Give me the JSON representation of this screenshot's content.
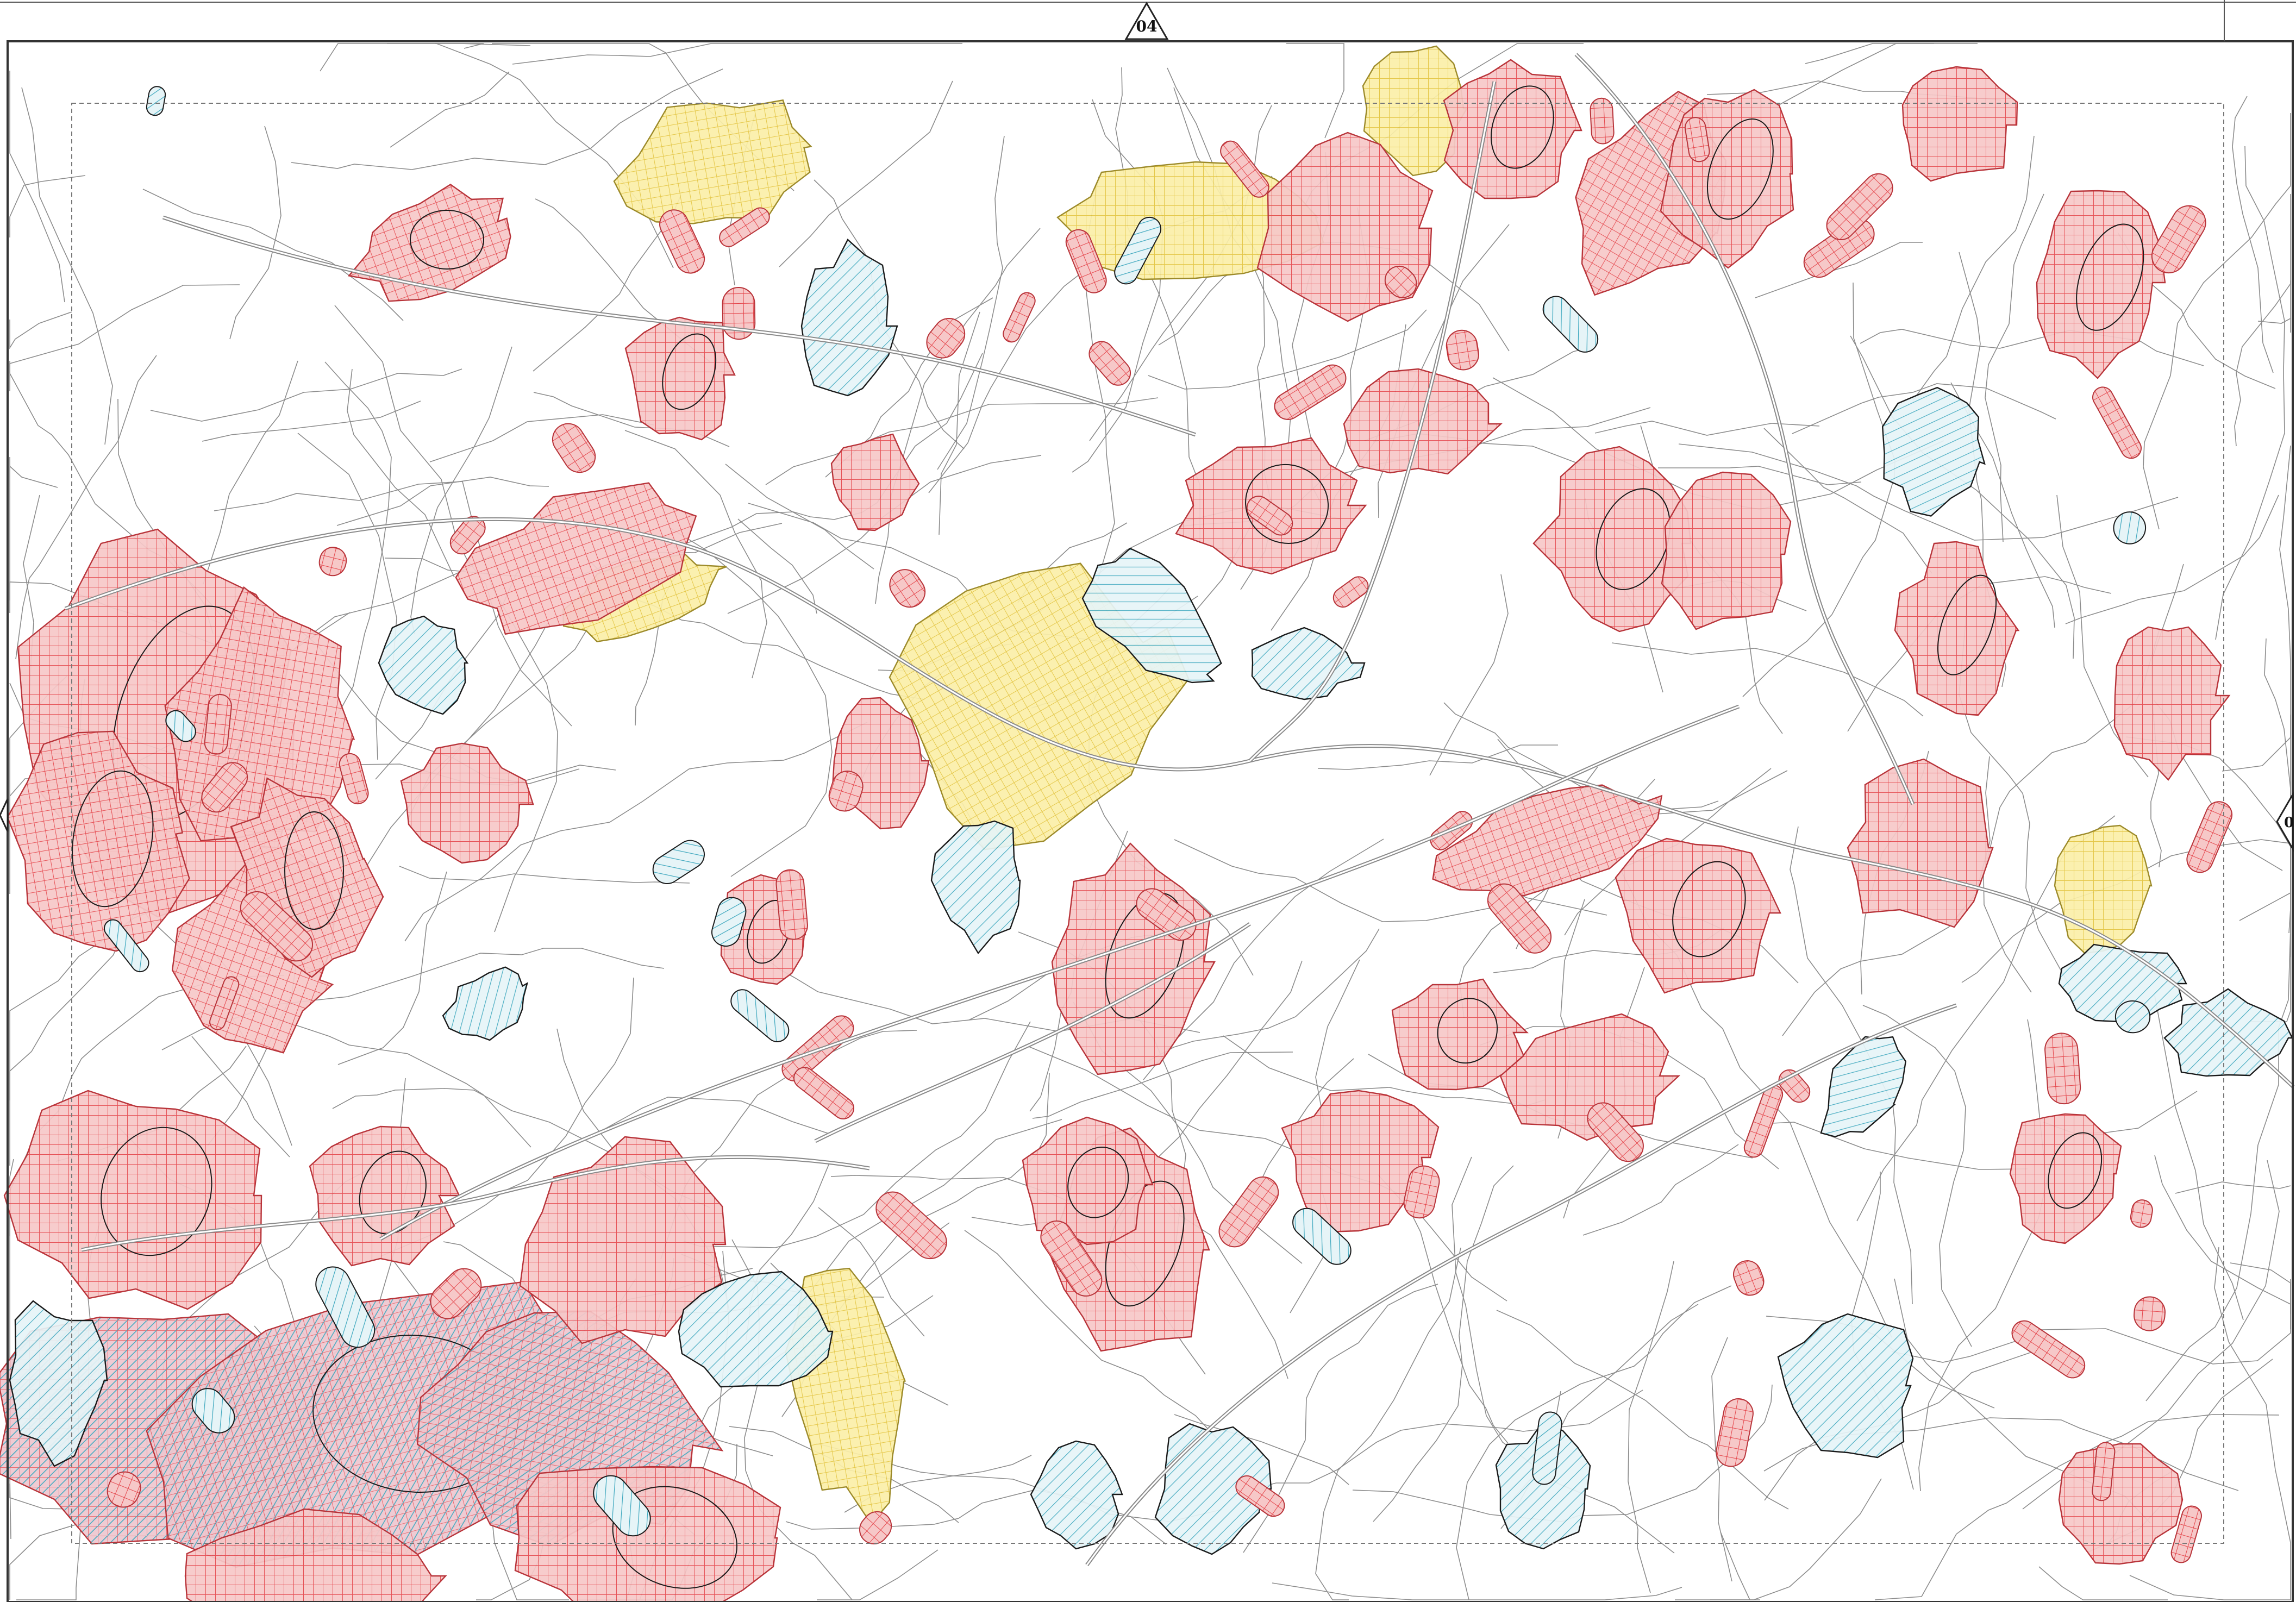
{
  "map": {
    "title": "",
    "sheet_refs": {
      "top": "04",
      "left": "",
      "right": "0"
    },
    "colors": {
      "background": "#ffffff",
      "frame": "#333333",
      "road": "#8a8a8a",
      "road_thin": "#a8a8a8",
      "parcel": "#8c8c8c",
      "stream": "#4d4d4d",
      "red_zone_fill": "#f6c8c8",
      "red_zone_grid": "#e4444a",
      "red_zone_stroke": "#b8343a",
      "blue_zone_hatch": "#3aa6bd",
      "blue_zone_fill": "#dff1f5",
      "yellow_zone_fill": "#fbefa8",
      "yellow_zone_grid": "#e2c23a",
      "outline_dark": "#1a1a1a"
    },
    "legend_classes": [
      {
        "name": "red-grid-zone",
        "pattern": "grid",
        "color": "#e4444a"
      },
      {
        "name": "blue-hatch-zone",
        "pattern": "diagonal-hatch",
        "color": "#3aa6bd"
      },
      {
        "name": "yellow-grid-zone",
        "pattern": "grid",
        "color": "#e2c23a"
      }
    ]
  }
}
